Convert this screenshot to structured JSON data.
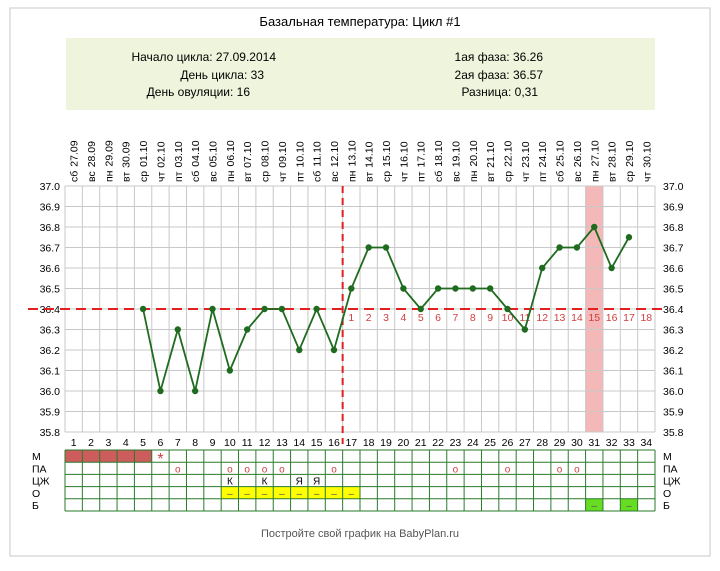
{
  "title": "Базальная температура: Цикл #1",
  "info": {
    "cycle_start": "Начало цикла: 27.09.2014",
    "cycle_day": "День цикла: 33",
    "ovulation_day": "День овуляции: 16",
    "phase1": "1ая фаза: 36.26",
    "phase2": "2ая фаза: 36.57",
    "difference": "Разница: 0,31"
  },
  "footer": "Постройте свой график на BabyPlan.ru",
  "colors": {
    "line": "#1f6b1f",
    "coverline": "#e02020",
    "highlight": "#f5b8b8",
    "info_bg": "#eef5dc",
    "menses": "#cd5c5c",
    "mark_yellow": "#ffff00",
    "mark_green": "#66dd22",
    "label_red": "#d04040"
  },
  "chart_data": {
    "type": "line",
    "title": "Базальная температура: Цикл #1",
    "x": [
      1,
      2,
      3,
      4,
      5,
      6,
      7,
      8,
      9,
      10,
      11,
      12,
      13,
      14,
      15,
      16,
      17,
      18,
      19,
      20,
      21,
      22,
      23,
      24,
      25,
      26,
      27,
      28,
      29,
      30,
      31,
      32,
      33,
      34
    ],
    "weekdays": [
      "сб",
      "вс",
      "пн",
      "вт",
      "ср",
      "чт",
      "пт",
      "сб",
      "вс",
      "пн",
      "вт",
      "ср",
      "чт",
      "пт",
      "сб",
      "вс",
      "пн",
      "вт",
      "ср",
      "чт",
      "пт",
      "сб",
      "вс",
      "пн",
      "вт",
      "ср",
      "чт",
      "пт",
      "сб",
      "вс",
      "пн",
      "вт",
      "ср",
      "чт"
    ],
    "dates": [
      "27.09",
      "28.09",
      "29.09",
      "30.09",
      "01.10",
      "02.10",
      "03.10",
      "04.10",
      "05.10",
      "06.10",
      "07.10",
      "08.10",
      "09.10",
      "10.10",
      "11.10",
      "12.10",
      "13.10",
      "14.10",
      "15.10",
      "16.10",
      "17.10",
      "18.10",
      "19.10",
      "20.10",
      "21.10",
      "22.10",
      "23.10",
      "24.10",
      "25.10",
      "26.10",
      "27.10",
      "28.10",
      "29.10",
      "30.10"
    ],
    "series": [
      {
        "values": [
          null,
          null,
          null,
          null,
          36.4,
          36.0,
          36.3,
          36.0,
          36.4,
          36.1,
          36.3,
          36.4,
          36.4,
          36.2,
          36.4,
          36.2,
          36.5,
          36.7,
          36.7,
          36.5,
          36.4,
          36.5,
          36.5,
          36.5,
          36.5,
          36.4,
          36.3,
          36.6,
          36.7,
          36.7,
          36.8,
          36.6,
          36.75,
          null
        ]
      }
    ],
    "ylim": [
      35.8,
      37.0
    ],
    "yticks": [
      "37.0",
      "36.9",
      "36.8",
      "36.7",
      "36.6",
      "36.5",
      "36.4",
      "36.3",
      "36.2",
      "36.1",
      "36.0",
      "35.9",
      "35.8"
    ],
    "coverline": 36.4,
    "ovulation_day": 16,
    "highlight_day": 31,
    "phase2_labels": [
      "1",
      "2",
      "3",
      "4",
      "5",
      "6",
      "7",
      "8",
      "9",
      "10",
      "11",
      "12",
      "13",
      "14",
      "15",
      "16",
      "17",
      "18"
    ],
    "grid": true
  },
  "rows": {
    "labels": [
      "М",
      "ПА",
      "ЦЖ",
      "О",
      "Б"
    ],
    "menses_days": [
      1,
      2,
      3,
      4,
      5
    ],
    "star_day": 6,
    "star_symbol": "*",
    "pa_days": [
      7,
      10,
      11,
      12,
      13,
      16,
      23,
      26,
      29,
      30
    ],
    "pa_symbol": "о",
    "cz_marks": [
      {
        "day": 10,
        "text": "К"
      },
      {
        "day": 12,
        "text": "К"
      },
      {
        "day": 14,
        "text": "Я"
      },
      {
        "day": 15,
        "text": "Я"
      }
    ],
    "o_days": [
      10,
      11,
      12,
      13,
      14,
      15,
      16,
      17
    ],
    "b_days": [
      31,
      33
    ],
    "dash_symbol": "–"
  }
}
